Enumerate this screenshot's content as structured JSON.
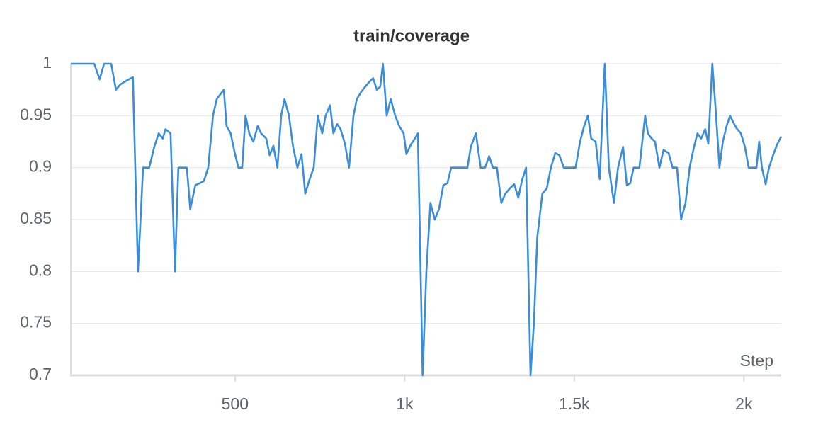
{
  "chart_data": {
    "type": "line",
    "title": "train/coverage",
    "xlabel": "Step",
    "color": "#3a8dd8",
    "grid": true,
    "xlim": [
      16,
      2110
    ],
    "ylim": [
      0.7,
      1
    ],
    "xticks": [
      500,
      {
        "value": 1000,
        "label": "1k"
      },
      {
        "value": 1500,
        "label": "1.5k"
      },
      {
        "value": 2000,
        "label": "2k"
      }
    ],
    "yticks": [
      0.7,
      0.75,
      0.8,
      0.85,
      0.9,
      0.95,
      1
    ],
    "x": [
      16,
      85,
      101,
      114,
      135,
      149,
      162,
      176,
      199,
      214,
      229,
      247,
      262,
      275,
      287,
      295,
      310,
      323,
      333,
      358,
      368,
      383,
      396,
      408,
      421,
      435,
      446,
      467,
      475,
      487,
      500,
      510,
      521,
      531,
      542,
      554,
      567,
      577,
      592,
      602,
      613,
      625,
      636,
      646,
      659,
      671,
      684,
      696,
      707,
      719,
      732,
      744,
      757,
      767,
      780,
      790,
      801,
      811,
      824,
      836,
      849,
      859,
      872,
      884,
      897,
      907,
      918,
      928,
      936,
      947,
      959,
      972,
      984,
      997,
      1005,
      1018,
      1030,
      1039,
      1053,
      1064,
      1076,
      1089,
      1101,
      1114,
      1126,
      1137,
      1149,
      1162,
      1174,
      1185,
      1195,
      1210,
      1224,
      1237,
      1249,
      1260,
      1272,
      1285,
      1297,
      1310,
      1323,
      1335,
      1346,
      1358,
      1371,
      1381,
      1391,
      1406,
      1419,
      1431,
      1444,
      1456,
      1469,
      1481,
      1494,
      1504,
      1517,
      1529,
      1540,
      1550,
      1563,
      1575,
      1590,
      1602,
      1617,
      1629,
      1644,
      1655,
      1665,
      1675,
      1692,
      1709,
      1717,
      1728,
      1738,
      1751,
      1763,
      1778,
      1790,
      1803,
      1815,
      1828,
      1840,
      1853,
      1863,
      1874,
      1886,
      1895,
      1907,
      1918,
      1928,
      1938,
      1949,
      1959,
      1968,
      1978,
      1991,
      2003,
      2014,
      2024,
      2037,
      2045,
      2053,
      2064,
      2074,
      2087,
      2099,
      2110
    ],
    "values": [
      1,
      1,
      0.985,
      1,
      1,
      0.975,
      0.98,
      0.983,
      0.987,
      0.8,
      0.9,
      0.9,
      0.92,
      0.933,
      0.928,
      0.937,
      0.933,
      0.8,
      0.9,
      0.9,
      0.86,
      0.883,
      0.885,
      0.887,
      0.9,
      0.95,
      0.966,
      0.975,
      0.94,
      0.933,
      0.913,
      0.9,
      0.9,
      0.95,
      0.933,
      0.925,
      0.94,
      0.933,
      0.928,
      0.912,
      0.921,
      0.9,
      0.95,
      0.966,
      0.95,
      0.92,
      0.9,
      0.913,
      0.875,
      0.888,
      0.9,
      0.95,
      0.933,
      0.95,
      0.96,
      0.933,
      0.942,
      0.937,
      0.923,
      0.9,
      0.95,
      0.966,
      0.973,
      0.978,
      0.983,
      0.986,
      0.975,
      0.978,
      1,
      0.95,
      0.966,
      0.95,
      0.94,
      0.933,
      0.913,
      0.922,
      0.928,
      0.933,
      0.7,
      0.8,
      0.866,
      0.85,
      0.86,
      0.883,
      0.885,
      0.9,
      0.9,
      0.9,
      0.9,
      0.9,
      0.92,
      0.933,
      0.9,
      0.9,
      0.911,
      0.9,
      0.9,
      0.866,
      0.875,
      0.88,
      0.884,
      0.871,
      0.888,
      0.9,
      0.7,
      0.75,
      0.833,
      0.875,
      0.88,
      0.9,
      0.914,
      0.912,
      0.9,
      0.9,
      0.9,
      0.9,
      0.925,
      0.94,
      0.95,
      0.928,
      0.925,
      0.889,
      1,
      0.9,
      0.866,
      0.9,
      0.92,
      0.883,
      0.885,
      0.9,
      0.9,
      0.95,
      0.933,
      0.928,
      0.925,
      0.9,
      0.917,
      0.914,
      0.9,
      0.9,
      0.85,
      0.866,
      0.9,
      0.92,
      0.933,
      0.928,
      0.937,
      0.923,
      1,
      0.95,
      0.9,
      0.925,
      0.94,
      0.95,
      0.944,
      0.938,
      0.933,
      0.92,
      0.9,
      0.9,
      0.9,
      0.925,
      0.9,
      0.884,
      0.9,
      0.913,
      0.923,
      0.93
    ]
  }
}
